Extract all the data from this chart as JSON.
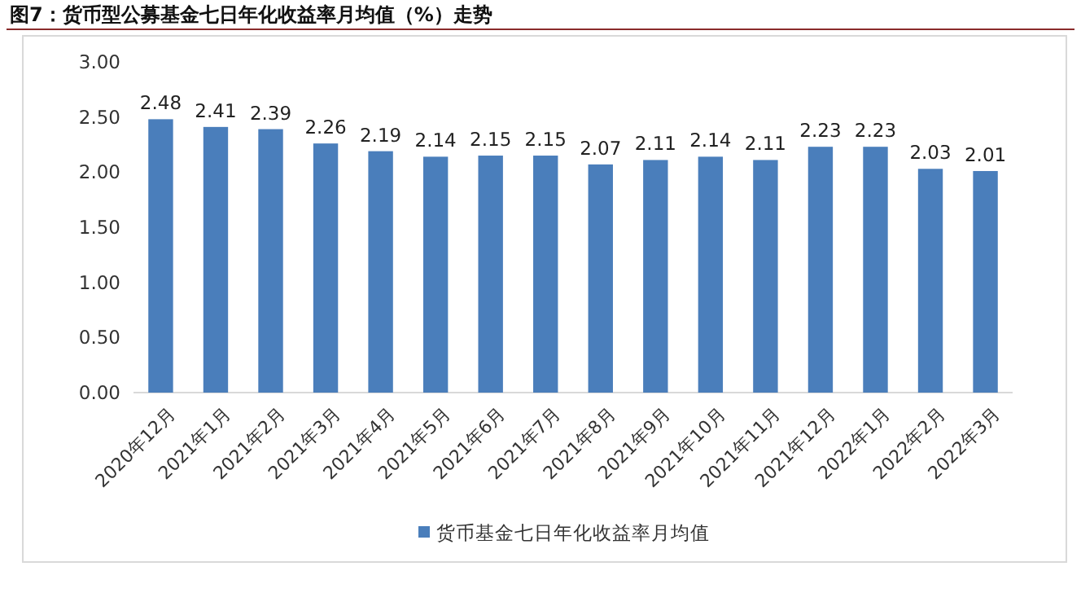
{
  "chart_data": {
    "type": "bar",
    "title": "图7：货币型公募基金七日年化收益率月均值（%）走势",
    "categories": [
      "2020年12月",
      "2021年1月",
      "2021年2月",
      "2021年3月",
      "2021年4月",
      "2021年5月",
      "2021年6月",
      "2021年7月",
      "2021年8月",
      "2021年9月",
      "2021年10月",
      "2021年11月",
      "2021年12月",
      "2022年1月",
      "2022年2月",
      "2022年3月"
    ],
    "series": [
      {
        "name": "货币基金七日年化收益率月均值",
        "color": "#4a7ebb",
        "values": [
          2.48,
          2.41,
          2.39,
          2.26,
          2.19,
          2.14,
          2.15,
          2.15,
          2.07,
          2.11,
          2.14,
          2.11,
          2.23,
          2.23,
          2.03,
          2.01
        ],
        "value_labels": [
          "2.48",
          "2.41",
          "2.39",
          "2.26",
          "2.19",
          "2.14",
          "2.15",
          "2.15",
          "2.07",
          "2.11",
          "2.14",
          "2.11",
          "2.23",
          "2.23",
          "2.03",
          "2.01"
        ]
      }
    ],
    "ylim": [
      0,
      3
    ],
    "yticks": [
      {
        "value": 0,
        "label": "0.00"
      },
      {
        "value": 0.5,
        "label": "0.50"
      },
      {
        "value": 1,
        "label": "1.00"
      },
      {
        "value": 1.5,
        "label": "1.50"
      },
      {
        "value": 2,
        "label": "2.00"
      },
      {
        "value": 2.5,
        "label": "2.50"
      },
      {
        "value": 3,
        "label": "3.00"
      }
    ],
    "legend": "bottom"
  }
}
